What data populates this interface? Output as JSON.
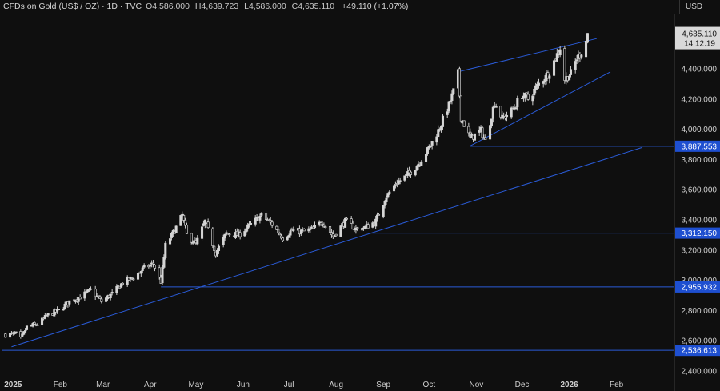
{
  "header": {
    "symbol": "CFDs on Gold (US$ / OZ) · 1D · TVC",
    "open": "O4,586.000",
    "high": "H4,639.723",
    "low": "L4,586.000",
    "close": "C4,635.110",
    "change": "+49.110 (+1.07%)"
  },
  "currency_label": "USD",
  "colors": {
    "background": "#0f0f0f",
    "trendline": "#2a5bd7",
    "marker_fill": "#1e4fd0",
    "text": "#d0d0d0",
    "candle_up": "#d6d6d6",
    "candle_down": "#0f0f0f"
  },
  "chart_data": {
    "type": "candlestick",
    "title": "CFDs on Gold (US$ / OZ) · 1D · TVC",
    "xlabel": "",
    "ylabel": "",
    "y_axis_ticks": [
      2400,
      2600,
      2800,
      3000,
      3200,
      3400,
      3600,
      3800,
      4000,
      4200,
      4400
    ],
    "y_tick_labels": [
      "2,400.000",
      "2,600.000",
      "2,800.000",
      "3,000.000",
      "3,200.000",
      "3,400.000",
      "3,600.000",
      "3,800.000",
      "4,000.000",
      "4,200.000",
      "4,400.000"
    ],
    "ylim": [
      2400,
      4650
    ],
    "x_axis_labels": [
      {
        "label": "2025",
        "date": "2025-01-01",
        "bold": true
      },
      {
        "label": "Feb",
        "date": "2025-02-01"
      },
      {
        "label": "Mar",
        "date": "2025-03-01"
      },
      {
        "label": "Apr",
        "date": "2025-04-01"
      },
      {
        "label": "May",
        "date": "2025-05-01"
      },
      {
        "label": "Jun",
        "date": "2025-06-01"
      },
      {
        "label": "Jul",
        "date": "2025-07-01"
      },
      {
        "label": "Aug",
        "date": "2025-08-01"
      },
      {
        "label": "Sep",
        "date": "2025-09-01"
      },
      {
        "label": "Oct",
        "date": "2025-10-01"
      },
      {
        "label": "Nov",
        "date": "2025-11-01"
      },
      {
        "label": "Dec",
        "date": "2025-12-01"
      },
      {
        "label": "2026",
        "date": "2026-01-01",
        "bold": true
      },
      {
        "label": "Feb",
        "date": "2026-02-01"
      }
    ],
    "xlim": [
      "2024-12-25",
      "2026-02-18"
    ],
    "close_path": [
      [
        "2024-12-27",
        2640
      ],
      [
        "2025-01-03",
        2645
      ],
      [
        "2025-01-06",
        2610
      ],
      [
        "2025-01-10",
        2690
      ],
      [
        "2025-01-17",
        2710
      ],
      [
        "2025-01-24",
        2770
      ],
      [
        "2025-01-31",
        2800
      ],
      [
        "2025-02-07",
        2860
      ],
      [
        "2025-02-14",
        2890
      ],
      [
        "2025-02-21",
        2935
      ],
      [
        "2025-02-28",
        2860
      ],
      [
        "2025-03-07",
        2910
      ],
      [
        "2025-03-14",
        2985
      ],
      [
        "2025-03-21",
        3020
      ],
      [
        "2025-03-28",
        3080
      ],
      [
        "2025-04-03",
        3110
      ],
      [
        "2025-04-08",
        2990
      ],
      [
        "2025-04-11",
        3230
      ],
      [
        "2025-04-17",
        3330
      ],
      [
        "2025-04-22",
        3430
      ],
      [
        "2025-04-25",
        3300
      ],
      [
        "2025-05-01",
        3240
      ],
      [
        "2025-05-07",
        3390
      ],
      [
        "2025-05-14",
        3180
      ],
      [
        "2025-05-21",
        3310
      ],
      [
        "2025-05-29",
        3300
      ],
      [
        "2025-06-05",
        3360
      ],
      [
        "2025-06-13",
        3430
      ],
      [
        "2025-06-20",
        3370
      ],
      [
        "2025-06-27",
        3280
      ],
      [
        "2025-07-03",
        3330
      ],
      [
        "2025-07-10",
        3320
      ],
      [
        "2025-07-17",
        3340
      ],
      [
        "2025-07-23",
        3390
      ],
      [
        "2025-07-30",
        3290
      ],
      [
        "2025-08-07",
        3390
      ],
      [
        "2025-08-14",
        3340
      ],
      [
        "2025-08-20",
        3350
      ],
      [
        "2025-08-27",
        3390
      ],
      [
        "2025-09-02",
        3540
      ],
      [
        "2025-09-09",
        3640
      ],
      [
        "2025-09-16",
        3690
      ],
      [
        "2025-09-23",
        3760
      ],
      [
        "2025-09-30",
        3860
      ],
      [
        "2025-10-07",
        3990
      ],
      [
        "2025-10-14",
        4160
      ],
      [
        "2025-10-17",
        4250
      ],
      [
        "2025-10-20",
        4370
      ],
      [
        "2025-10-22",
        4080
      ],
      [
        "2025-10-28",
        3940
      ],
      [
        "2025-11-04",
        3990
      ],
      [
        "2025-11-07",
        3920
      ],
      [
        "2025-11-13",
        4180
      ],
      [
        "2025-11-18",
        4070
      ],
      [
        "2025-11-25",
        4130
      ],
      [
        "2025-12-01",
        4230
      ],
      [
        "2025-12-05",
        4200
      ],
      [
        "2025-12-12",
        4300
      ],
      [
        "2025-12-19",
        4380
      ],
      [
        "2025-12-26",
        4540
      ],
      [
        "2025-12-29",
        4330
      ],
      [
        "2026-01-02",
        4370
      ],
      [
        "2026-01-06",
        4470
      ],
      [
        "2026-01-09",
        4510
      ],
      [
        "2026-01-12",
        4586
      ],
      [
        "2026-01-13",
        4635.11
      ]
    ],
    "trendlines": [
      {
        "from": [
          "2024-12-31",
          2560
        ],
        "to": [
          "2026-02-18",
          3880
        ]
      },
      {
        "from": [
          "2025-10-20",
          4380
        ],
        "to": [
          "2026-01-19",
          4600
        ]
      },
      {
        "from": [
          "2025-10-28",
          3890
        ],
        "to": [
          "2026-01-28",
          4380
        ]
      }
    ],
    "horizontal_levels": [
      {
        "value": 3887.553,
        "label": "3,887.553",
        "start": "2025-10-28"
      },
      {
        "value": 3312.15,
        "label": "3,312.150",
        "start": "2025-08-22"
      },
      {
        "value": 2955.932,
        "label": "2,955.932",
        "start": "2025-04-08"
      },
      {
        "value": 2536.613,
        "label": "2,536.613",
        "start": "2024-12-25"
      }
    ],
    "last_price": {
      "value": 4635.11,
      "label": "4,635.110",
      "countdown": "14:12:19"
    }
  }
}
